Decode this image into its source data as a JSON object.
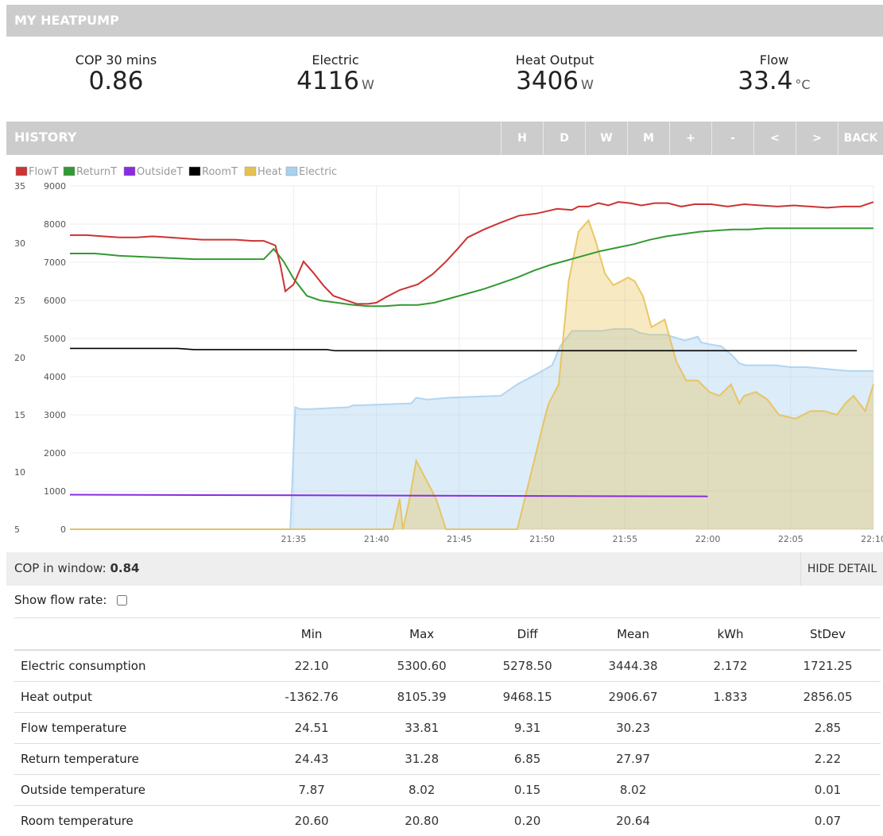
{
  "header": {
    "title": "MY HEATPUMP"
  },
  "stats": [
    {
      "label": "COP 30 mins",
      "value": "0.86",
      "unit": ""
    },
    {
      "label": "Electric",
      "value": "4116",
      "unit": "W"
    },
    {
      "label": "Heat Output",
      "value": "3406",
      "unit": "W"
    },
    {
      "label": "Flow",
      "value": "33.4",
      "unit": "°C"
    }
  ],
  "history": {
    "title": "HISTORY",
    "buttons": [
      "H",
      "D",
      "W",
      "M",
      "+",
      "-",
      "<",
      ">",
      "BACK"
    ]
  },
  "chart_data": {
    "type": "line",
    "legend": [
      {
        "name": "FlowT",
        "color": "#cc3333"
      },
      {
        "name": "ReturnT",
        "color": "#339933"
      },
      {
        "name": "OutsideT",
        "color": "#8a2be2"
      },
      {
        "name": "RoomT",
        "color": "#000000"
      },
      {
        "name": "Heat",
        "color": "#e8c050"
      },
      {
        "name": "Electric",
        "color": "#a8d0ef"
      }
    ],
    "legend_position": "top-left",
    "x_ticks": [
      "21:35",
      "21:40",
      "21:45",
      "21:50",
      "21:55",
      "22:00",
      "22:05",
      "22:10"
    ],
    "x_range_minutes": [
      21.5,
      70
    ],
    "temp_axis": {
      "ticks": [
        5,
        10,
        15,
        20,
        25,
        30,
        35
      ],
      "range": [
        5,
        35
      ]
    },
    "power_axis": {
      "ticks": [
        0,
        1000,
        2000,
        3000,
        4000,
        5000,
        6000,
        7000,
        8000,
        9000
      ],
      "range": [
        0,
        9000
      ]
    },
    "series": [
      {
        "name": "FlowT",
        "axis": "temp",
        "x": [
          21.5,
          22.5,
          23.5,
          24.5,
          25.5,
          26.5,
          27.5,
          28.5,
          29.5,
          30.5,
          31.5,
          32.5,
          33.2,
          33.9,
          34.2,
          34.5,
          35,
          35.6,
          36.2,
          36.8,
          37.4,
          38,
          38.8,
          39.5,
          40,
          40.6,
          41.4,
          42.5,
          43.4,
          44.2,
          44.9,
          45.5,
          46.5,
          47.5,
          48.6,
          49.7,
          50.3,
          50.9,
          51.8,
          52.2,
          52.8,
          53.4,
          54,
          54.6,
          55.3,
          56,
          56.8,
          57.6,
          58.4,
          59.2,
          60.2,
          61.2,
          62.2,
          63.2,
          64.2,
          65.2,
          66.2,
          67.2,
          68.2,
          69.2,
          70
        ],
        "y": [
          30.7,
          30.7,
          30.6,
          30.5,
          30.5,
          30.6,
          30.5,
          30.4,
          30.3,
          30.3,
          30.3,
          30.2,
          30.2,
          29.8,
          28.1,
          25.8,
          26.4,
          28.4,
          27.4,
          26.3,
          25.4,
          25.1,
          24.7,
          24.7,
          24.8,
          25.3,
          25.9,
          26.4,
          27.3,
          28.4,
          29.5,
          30.5,
          31.2,
          31.8,
          32.4,
          32.6,
          32.8,
          33.0,
          32.9,
          33.2,
          33.2,
          33.5,
          33.3,
          33.6,
          33.5,
          33.3,
          33.5,
          33.5,
          33.2,
          33.4,
          33.4,
          33.2,
          33.4,
          33.3,
          33.2,
          33.3,
          33.2,
          33.1,
          33.2,
          33.2,
          33.6
        ]
      },
      {
        "name": "ReturnT",
        "axis": "temp",
        "x": [
          21.5,
          23,
          24.5,
          26,
          27.5,
          29,
          30.5,
          32,
          33.2,
          33.8,
          34.4,
          35,
          35.8,
          36.6,
          37.6,
          38.6,
          39.5,
          40.5,
          41.5,
          42.5,
          43.5,
          44.5,
          45.5,
          46.5,
          47.5,
          48.5,
          49.5,
          50.5,
          51.5,
          52.5,
          53.5,
          54.5,
          55.5,
          56.5,
          57.5,
          58.5,
          59.5,
          60.5,
          61.5,
          62.5,
          63.5,
          64.5,
          65.5,
          66.5,
          67.5,
          68.5,
          69.5,
          70
        ],
        "y": [
          29.1,
          29.1,
          28.9,
          28.8,
          28.7,
          28.6,
          28.6,
          28.6,
          28.6,
          29.5,
          28.4,
          26.9,
          25.4,
          25.0,
          24.8,
          24.6,
          24.5,
          24.5,
          24.6,
          24.6,
          24.8,
          25.2,
          25.6,
          26.0,
          26.5,
          27.0,
          27.6,
          28.1,
          28.5,
          28.9,
          29.3,
          29.6,
          29.9,
          30.3,
          30.6,
          30.8,
          31.0,
          31.1,
          31.2,
          31.2,
          31.3,
          31.3,
          31.3,
          31.3,
          31.3,
          31.3,
          31.3,
          31.3
        ]
      },
      {
        "name": "OutsideT",
        "axis": "temp",
        "x": [
          21.5,
          60
        ],
        "y": [
          8.02,
          7.87
        ]
      },
      {
        "name": "RoomT",
        "axis": "temp",
        "x": [
          21.5,
          28,
          29,
          37,
          37.5,
          62,
          69
        ],
        "y": [
          20.8,
          20.8,
          20.7,
          20.7,
          20.6,
          20.6,
          20.6
        ]
      },
      {
        "name": "Heat",
        "axis": "power",
        "x": [
          21.5,
          40,
          41,
          41.4,
          41.6,
          42,
          42.4,
          43,
          43.6,
          44.2,
          45.3,
          45.6,
          47,
          48.5,
          50.2,
          50.4,
          51,
          51.6,
          52.2,
          52.8,
          53.2,
          53.8,
          54.3,
          55.2,
          55.6,
          56.1,
          56.6,
          57.4,
          58.1,
          58.7,
          59.4,
          60.1,
          60.7,
          61.4,
          61.9,
          62.2,
          62.9,
          63.6,
          64.3,
          65.3,
          66.2,
          67,
          67.8,
          68.3,
          68.8,
          69.5,
          70
        ],
        "y": [
          0,
          0,
          0,
          800,
          0,
          800,
          1800,
          1300,
          800,
          0,
          0,
          0,
          0,
          0,
          3000,
          3300,
          3800,
          6500,
          7800,
          8100,
          7600,
          6700,
          6400,
          6600,
          6500,
          6100,
          5300,
          5500,
          4400,
          3900,
          3900,
          3600,
          3500,
          3800,
          3300,
          3500,
          3600,
          3400,
          3000,
          2900,
          3100,
          3100,
          3000,
          3300,
          3500,
          3100,
          3800
        ]
      },
      {
        "name": "Electric",
        "axis": "power",
        "x": [
          21.5,
          34.8,
          35.1,
          35.4,
          36,
          38.3,
          38.6,
          39,
          42.1,
          42.4,
          43.1,
          44.4,
          47.5,
          48.5,
          49.8,
          50,
          50.6,
          51.1,
          51.8,
          53.1,
          53.6,
          54.3,
          55,
          55.4,
          55.9,
          56.5,
          57.5,
          58.6,
          59.4,
          59.6,
          60.1,
          60.8,
          61.5,
          61.9,
          62.3,
          63.2,
          64.1,
          65,
          66,
          67.2,
          68.5,
          70
        ],
        "y": [
          0,
          0,
          3200,
          3150,
          3150,
          3200,
          3250,
          3250,
          3300,
          3450,
          3400,
          3450,
          3500,
          3800,
          4100,
          4150,
          4300,
          4800,
          5200,
          5200,
          5200,
          5250,
          5250,
          5250,
          5150,
          5100,
          5100,
          4950,
          5050,
          4900,
          4850,
          4800,
          4550,
          4350,
          4300,
          4300,
          4300,
          4250,
          4250,
          4200,
          4150,
          4150
        ]
      }
    ]
  },
  "cop_window": {
    "label": "COP in window:",
    "value": "0.84"
  },
  "hide_detail": "HIDE DETAIL",
  "flow_rate": {
    "label": "Show flow rate:"
  },
  "table": {
    "headers": [
      "",
      "Min",
      "Max",
      "Diff",
      "Mean",
      "kWh",
      "StDev"
    ],
    "rows": [
      [
        "Electric consumption",
        "22.10",
        "5300.60",
        "5278.50",
        "3444.38",
        "2.172",
        "1721.25"
      ],
      [
        "Heat output",
        "-1362.76",
        "8105.39",
        "9468.15",
        "2906.67",
        "1.833",
        "2856.05"
      ],
      [
        "Flow temperature",
        "24.51",
        "33.81",
        "9.31",
        "30.23",
        "",
        "2.85"
      ],
      [
        "Return temperature",
        "24.43",
        "31.28",
        "6.85",
        "27.97",
        "",
        "2.22"
      ],
      [
        "Outside temperature",
        "7.87",
        "8.02",
        "0.15",
        "8.02",
        "",
        "0.01"
      ],
      [
        "Room temperature",
        "20.60",
        "20.80",
        "0.20",
        "20.64",
        "",
        "0.07"
      ]
    ]
  }
}
